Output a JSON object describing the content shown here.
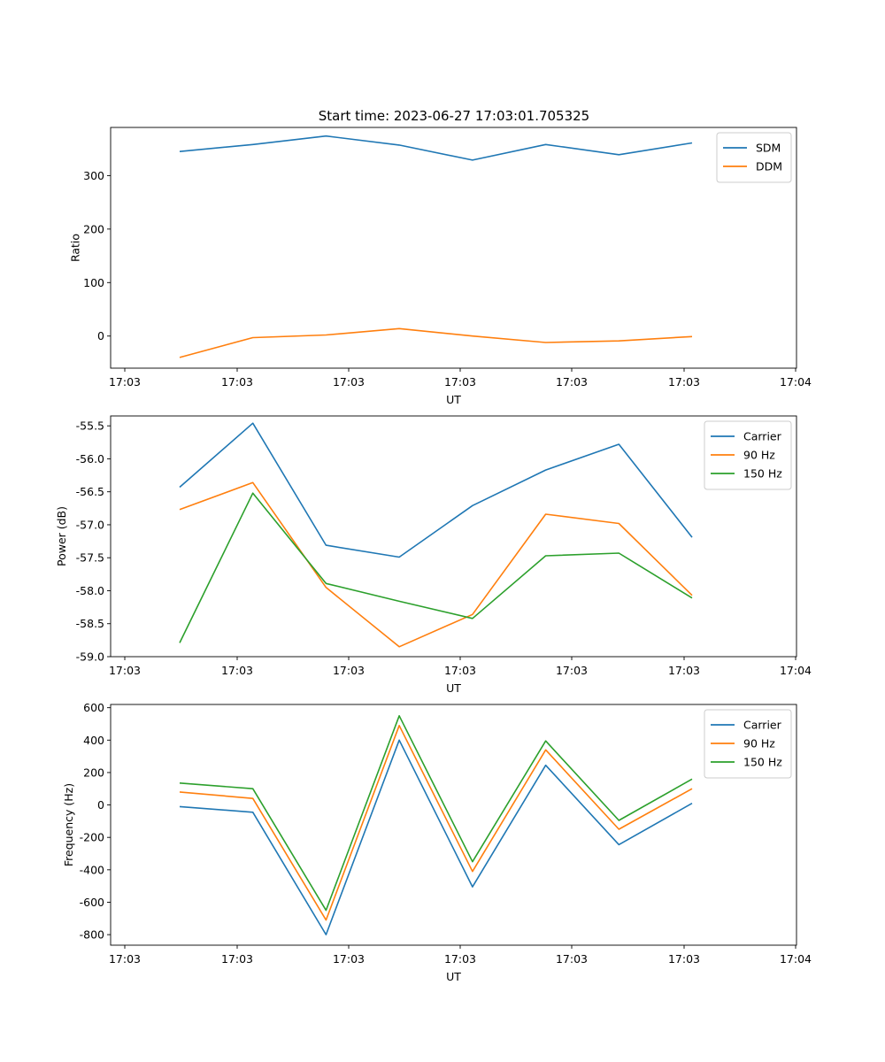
{
  "figure": {
    "title": "Start time: 2023-06-27 17:03:01.705325"
  },
  "chart_data": [
    {
      "type": "line",
      "title": "Start time: 2023-06-27 17:03:01.705325",
      "xlabel": "UT",
      "ylabel": "Ratio",
      "x": [
        1,
        2,
        3,
        4,
        5,
        6,
        7,
        8
      ],
      "x_tick_labels": [
        "17:03",
        "17:03",
        "17:03",
        "17:03",
        "17:03",
        "17:03",
        "17:03",
        "17:04"
      ],
      "ylim": [
        -60,
        390
      ],
      "yticks": [
        0,
        100,
        200,
        300
      ],
      "legend_position": "top-right",
      "grid": false,
      "series": [
        {
          "name": "SDM",
          "color": "#1f77b4",
          "values": [
            345,
            358,
            374,
            357,
            329,
            358,
            339,
            361
          ]
        },
        {
          "name": "DDM",
          "color": "#ff7f0e",
          "values": [
            -40,
            -3,
            2,
            14,
            0,
            -12,
            -9,
            -1
          ]
        }
      ]
    },
    {
      "type": "line",
      "xlabel": "UT",
      "ylabel": "Power (dB)",
      "x": [
        1,
        2,
        3,
        4,
        5,
        6,
        7,
        8
      ],
      "x_tick_labels": [
        "17:03",
        "17:03",
        "17:03",
        "17:03",
        "17:03",
        "17:03",
        "17:03",
        "17:04"
      ],
      "ylim": [
        -59.0,
        -55.35
      ],
      "yticks": [
        -59.0,
        -58.5,
        -58.0,
        -57.5,
        -57.0,
        -56.5,
        -56.0,
        -55.5
      ],
      "legend_position": "top-right",
      "grid": false,
      "series": [
        {
          "name": "Carrier",
          "color": "#1f77b4",
          "values": [
            -56.43,
            -55.46,
            -57.31,
            -57.49,
            -56.71,
            -56.17,
            -55.78,
            -57.19
          ]
        },
        {
          "name": "90 Hz",
          "color": "#ff7f0e",
          "values": [
            -56.77,
            -56.36,
            -57.95,
            -58.85,
            -58.36,
            -56.84,
            -56.98,
            -58.07
          ]
        },
        {
          "name": "150 Hz",
          "color": "#2ca02c",
          "values": [
            -58.79,
            -56.52,
            -57.89,
            -58.16,
            -58.42,
            -57.47,
            -57.43,
            -58.11
          ]
        }
      ]
    },
    {
      "type": "line",
      "xlabel": "UT",
      "ylabel": "Frequency (Hz)",
      "x": [
        1,
        2,
        3,
        4,
        5,
        6,
        7,
        8
      ],
      "x_tick_labels": [
        "17:03",
        "17:03",
        "17:03",
        "17:03",
        "17:03",
        "17:03",
        "17:03",
        "17:04"
      ],
      "ylim": [
        -865,
        620
      ],
      "yticks": [
        -800,
        -600,
        -400,
        -200,
        0,
        200,
        400,
        600
      ],
      "legend_position": "top-right",
      "grid": false,
      "series": [
        {
          "name": "Carrier",
          "color": "#1f77b4",
          "values": [
            -10,
            -45,
            -800,
            400,
            -505,
            245,
            -245,
            10
          ]
        },
        {
          "name": "90 Hz",
          "color": "#ff7f0e",
          "values": [
            80,
            40,
            -710,
            490,
            -410,
            340,
            -150,
            100
          ]
        },
        {
          "name": "150 Hz",
          "color": "#2ca02c",
          "values": [
            135,
            100,
            -650,
            550,
            -350,
            395,
            -95,
            160
          ]
        }
      ]
    }
  ]
}
